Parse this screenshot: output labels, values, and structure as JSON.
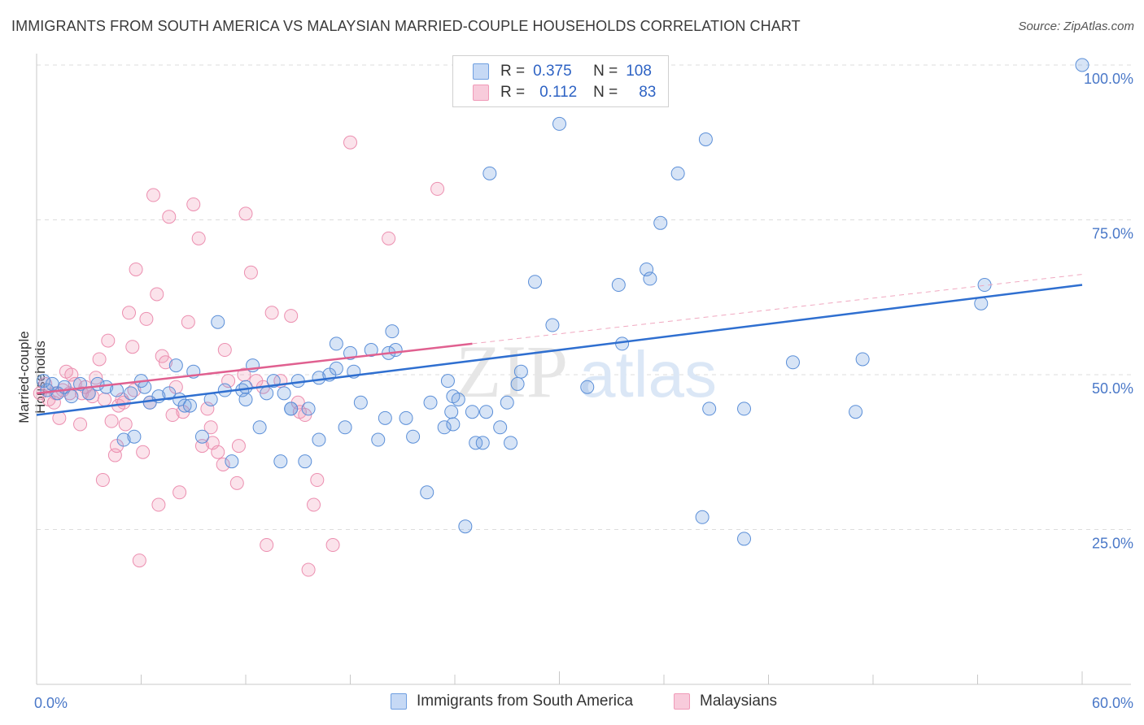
{
  "title": "IMMIGRANTS FROM SOUTH AMERICA VS MALAYSIAN MARRIED-COUPLE HOUSEHOLDS CORRELATION CHART",
  "source": "Source: ZipAtlas.com",
  "watermark": {
    "zip": "ZIP",
    "atlas": "atlas"
  },
  "legend": [
    {
      "r_label": "R =",
      "r_value": "0.375",
      "n_label": "N =",
      "n_value": "108"
    },
    {
      "r_label": "R =",
      "r_value": "0.112",
      "n_label": "N =",
      "n_value": "83"
    }
  ],
  "bottom_legend": [
    "Immigrants from South America",
    "Malaysians"
  ],
  "chart_data": {
    "type": "scatter",
    "xlabel": "",
    "ylabel": "Married-couple Households",
    "xlim": [
      0,
      60
    ],
    "ylim": [
      0,
      100
    ],
    "x_tick_labels": [
      "0.0%",
      "60.0%"
    ],
    "y_ticks": [
      25,
      50,
      75,
      100
    ],
    "y_tick_labels": [
      "25.0%",
      "50.0%",
      "75.0%",
      "100.0%"
    ],
    "grid": true,
    "legend_position": "top-center",
    "colors": {
      "blue": "#6f9fe0",
      "blue_line": "#2f6fd0",
      "pink": "#f09ab8",
      "pink_line": "#e06090"
    },
    "series": [
      {
        "name": "Immigrants from South America",
        "color": "#6f9fe0",
        "trend": {
          "x": [
            0,
            60
          ],
          "y": [
            43.5,
            64.5
          ]
        },
        "points": [
          [
            0.4,
            49
          ],
          [
            0.6,
            47.5
          ],
          [
            0.9,
            48.5
          ],
          [
            1.2,
            47
          ],
          [
            1.6,
            48
          ],
          [
            2.0,
            46.5
          ],
          [
            2.5,
            48.5
          ],
          [
            3.0,
            47
          ],
          [
            3.5,
            48.5
          ],
          [
            4.0,
            48
          ],
          [
            4.6,
            47.5
          ],
          [
            5.0,
            39.5
          ],
          [
            5.4,
            47
          ],
          [
            5.6,
            40
          ],
          [
            6.0,
            49
          ],
          [
            6.2,
            48
          ],
          [
            6.5,
            45.5
          ],
          [
            7.0,
            46.5
          ],
          [
            8.0,
            51.5
          ],
          [
            7.6,
            47
          ],
          [
            8.2,
            46
          ],
          [
            8.5,
            45
          ],
          [
            8.8,
            45
          ],
          [
            9.0,
            50.5
          ],
          [
            9.5,
            40
          ],
          [
            10.0,
            46
          ],
          [
            10.4,
            58.5
          ],
          [
            10.8,
            47.5
          ],
          [
            11.2,
            36
          ],
          [
            11.8,
            47.5
          ],
          [
            12.0,
            46
          ],
          [
            12.4,
            51.5
          ],
          [
            12.0,
            48
          ],
          [
            12.8,
            41.5
          ],
          [
            13.2,
            47
          ],
          [
            13.6,
            49
          ],
          [
            14.0,
            36
          ],
          [
            14.2,
            47
          ],
          [
            14.6,
            44.5
          ],
          [
            14.6,
            44.5
          ],
          [
            15.0,
            49
          ],
          [
            15.4,
            36
          ],
          [
            15.6,
            44.5
          ],
          [
            16.2,
            39.5
          ],
          [
            16.2,
            49.5
          ],
          [
            16.8,
            50
          ],
          [
            17.2,
            51
          ],
          [
            17.7,
            41.5
          ],
          [
            17.2,
            55
          ],
          [
            18.0,
            53.5
          ],
          [
            18.2,
            50.5
          ],
          [
            18.6,
            45.5
          ],
          [
            19.2,
            54
          ],
          [
            19.6,
            39.5
          ],
          [
            20.0,
            43
          ],
          [
            20.4,
            57
          ],
          [
            20.2,
            53.5
          ],
          [
            20.6,
            54
          ],
          [
            21.2,
            43
          ],
          [
            21.6,
            40
          ],
          [
            22.4,
            31
          ],
          [
            22.6,
            45.5
          ],
          [
            23.4,
            41.5
          ],
          [
            23.6,
            49
          ],
          [
            23.8,
            44
          ],
          [
            23.9,
            42
          ],
          [
            23.9,
            46.5
          ],
          [
            24.2,
            46
          ],
          [
            24.6,
            25.5
          ],
          [
            25.0,
            44
          ],
          [
            25.2,
            39
          ],
          [
            25.6,
            39
          ],
          [
            25.8,
            44
          ],
          [
            26.6,
            41.5
          ],
          [
            27.0,
            45.5
          ],
          [
            27.2,
            39
          ],
          [
            27.6,
            48.5
          ],
          [
            27.8,
            50.5
          ],
          [
            26.0,
            82.5
          ],
          [
            28.6,
            65
          ],
          [
            29.6,
            58
          ],
          [
            30.0,
            90.5
          ],
          [
            31.6,
            48
          ],
          [
            33.4,
            64.5
          ],
          [
            33.6,
            55
          ],
          [
            35.0,
            67
          ],
          [
            35.2,
            65.5
          ],
          [
            35.8,
            74.5
          ],
          [
            36.8,
            82.5
          ],
          [
            38.2,
            27
          ],
          [
            38.6,
            44.5
          ],
          [
            38.4,
            88
          ],
          [
            40.6,
            44.5
          ],
          [
            40.6,
            23.5
          ],
          [
            43.4,
            52
          ],
          [
            47.4,
            52.5
          ],
          [
            47.0,
            44
          ],
          [
            54.2,
            61.5
          ],
          [
            54.4,
            64.5
          ],
          [
            60.0,
            100
          ]
        ]
      },
      {
        "name": "Malaysians",
        "color": "#f09ab8",
        "trend": {
          "x": [
            0,
            25
          ],
          "y": [
            47,
            55
          ]
        },
        "points": [
          [
            0.2,
            47
          ],
          [
            0.5,
            48.5
          ],
          [
            0.7,
            46
          ],
          [
            1.0,
            45.5
          ],
          [
            1.1,
            47
          ],
          [
            1.3,
            43
          ],
          [
            1.5,
            47.5
          ],
          [
            1.7,
            50.5
          ],
          [
            1.9,
            47
          ],
          [
            2.0,
            50
          ],
          [
            2.2,
            48.5
          ],
          [
            2.5,
            42
          ],
          [
            2.6,
            47
          ],
          [
            2.8,
            48
          ],
          [
            3.0,
            47
          ],
          [
            3.2,
            46.5
          ],
          [
            3.4,
            49.5
          ],
          [
            3.6,
            52.5
          ],
          [
            3.8,
            33
          ],
          [
            3.9,
            46
          ],
          [
            4.1,
            55.5
          ],
          [
            4.3,
            42.5
          ],
          [
            4.5,
            37
          ],
          [
            4.6,
            38.5
          ],
          [
            4.7,
            45
          ],
          [
            4.9,
            46
          ],
          [
            5.0,
            45.5
          ],
          [
            5.1,
            42
          ],
          [
            5.3,
            60
          ],
          [
            5.5,
            54.5
          ],
          [
            5.6,
            47.5
          ],
          [
            5.7,
            67
          ],
          [
            5.9,
            20
          ],
          [
            6.1,
            37.5
          ],
          [
            6.3,
            59
          ],
          [
            6.5,
            45.5
          ],
          [
            6.7,
            79
          ],
          [
            6.9,
            63
          ],
          [
            7.0,
            29
          ],
          [
            7.2,
            53
          ],
          [
            7.4,
            52
          ],
          [
            7.6,
            75.5
          ],
          [
            7.8,
            43.5
          ],
          [
            8.0,
            48
          ],
          [
            8.2,
            31
          ],
          [
            8.4,
            44
          ],
          [
            8.7,
            58.5
          ],
          [
            9.0,
            77.5
          ],
          [
            9.3,
            72
          ],
          [
            9.5,
            38.5
          ],
          [
            9.8,
            44.5
          ],
          [
            10.0,
            41.5
          ],
          [
            10.1,
            39
          ],
          [
            10.4,
            37.5
          ],
          [
            10.7,
            35.5
          ],
          [
            10.8,
            54
          ],
          [
            11.0,
            49
          ],
          [
            11.5,
            32.5
          ],
          [
            11.6,
            38.5
          ],
          [
            11.9,
            50
          ],
          [
            12.0,
            76
          ],
          [
            12.3,
            66.5
          ],
          [
            12.6,
            49
          ],
          [
            13.0,
            48
          ],
          [
            13.2,
            22.5
          ],
          [
            13.5,
            60
          ],
          [
            14.0,
            49
          ],
          [
            14.6,
            59.5
          ],
          [
            15.0,
            45.5
          ],
          [
            15.1,
            44
          ],
          [
            15.4,
            43.5
          ],
          [
            15.6,
            18.5
          ],
          [
            15.9,
            29
          ],
          [
            16.1,
            33
          ],
          [
            17.0,
            22.5
          ],
          [
            18.0,
            87.5
          ],
          [
            20.2,
            72
          ],
          [
            23.0,
            80
          ]
        ]
      }
    ]
  }
}
